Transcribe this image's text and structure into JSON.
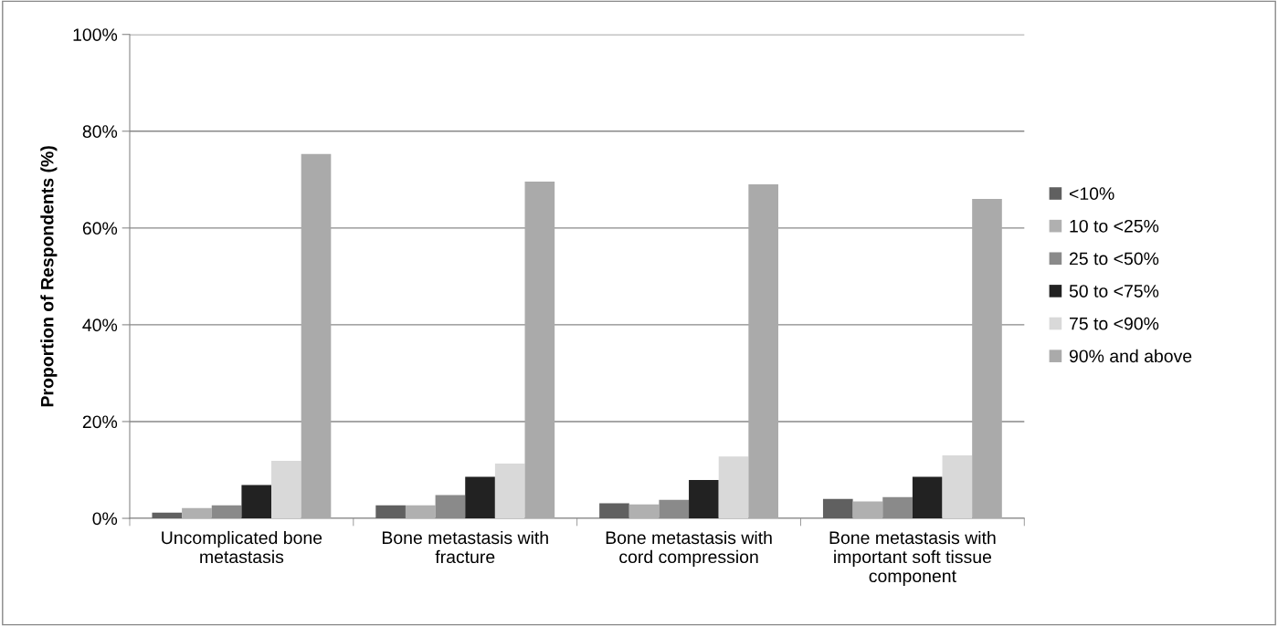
{
  "chart_data": {
    "type": "bar",
    "ylabel": "Proportion of Respondents (%)",
    "categories": [
      "Uncomplicated bone\nmetastasis",
      "Bone metastasis with\nfracture",
      "Bone metastasis with\ncord compression",
      "Bone metastasis with\nimportant soft tissue\ncomponent"
    ],
    "series": [
      {
        "name": "<10%",
        "color": "#606060",
        "values": [
          1.2,
          2.7,
          3.1,
          4.0
        ]
      },
      {
        "name": "10 to <25%",
        "color": "#b0b0b0",
        "values": [
          2.1,
          2.7,
          2.9,
          3.5
        ]
      },
      {
        "name": "25 to <50%",
        "color": "#8a8a8a",
        "values": [
          2.7,
          4.8,
          3.8,
          4.4
        ]
      },
      {
        "name": "50 to <75%",
        "color": "#222222",
        "values": [
          6.9,
          8.6,
          7.9,
          8.6
        ]
      },
      {
        "name": "75 to <90%",
        "color": "#d9d9d9",
        "values": [
          11.9,
          11.3,
          12.8,
          13.0
        ]
      },
      {
        "name": "90% and above",
        "color": "#aaaaaa",
        "values": [
          75.3,
          69.6,
          69.0,
          66.0
        ]
      }
    ],
    "ylim": [
      0,
      100
    ],
    "yticks": [
      {
        "value": 0,
        "label": "0%"
      },
      {
        "value": 20,
        "label": "20%"
      },
      {
        "value": 40,
        "label": "40%"
      },
      {
        "value": 60,
        "label": "60%"
      },
      {
        "value": 80,
        "label": "80%"
      },
      {
        "value": 100,
        "label": "100%"
      }
    ],
    "grid": "y",
    "legend": "right"
  }
}
